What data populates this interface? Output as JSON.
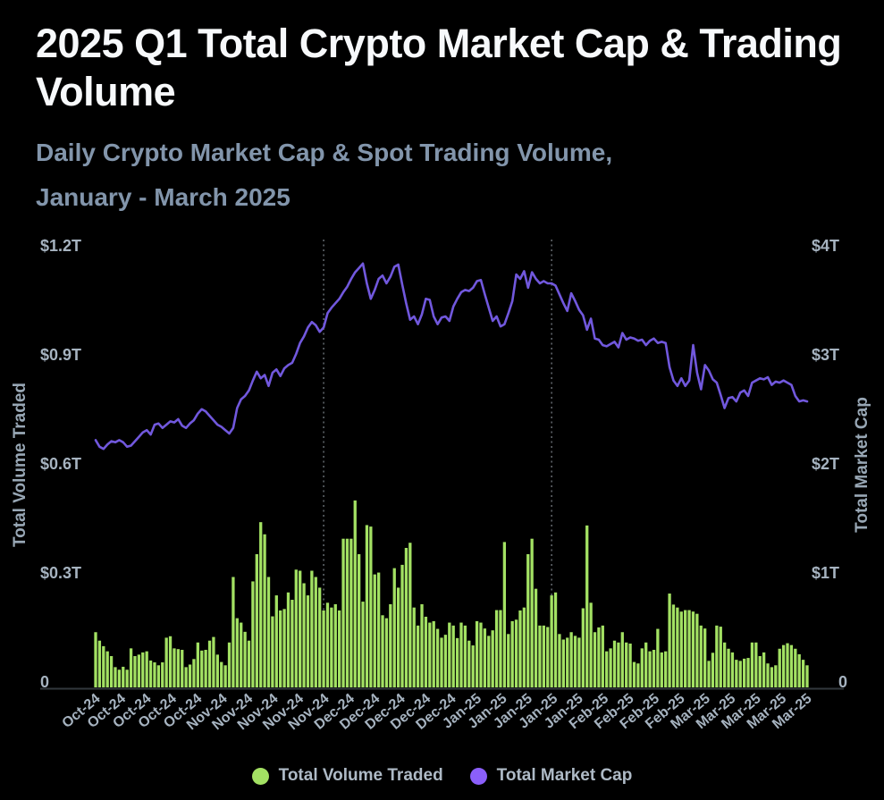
{
  "header": {
    "title": "2025 Q1 Total Crypto Market Cap & Trading Volume",
    "subtitle_line1": "Daily Crypto Market Cap & Spot Trading Volume,",
    "subtitle_line2": "January - March 2025"
  },
  "theme": {
    "background": "#000000",
    "title_color": "#f7f9fb",
    "subtitle_color": "#8295ab",
    "tick_label_color": "#a6b3c0",
    "axis_title_color": "#98a7b5",
    "legend_text_color": "#aebac6",
    "axis_line_color": "#32373d",
    "dashed_gridline_color": "#8b9299",
    "bar_color": "#a3e163",
    "line_color": "#7158dd",
    "legend_volume_dot_color": "#a3e163",
    "legend_marketcap_dot_color": "#8b5ffa"
  },
  "chart_data": {
    "type": "bar+line",
    "title": "2025 Q1 Total Crypto Market Cap & Trading Volume",
    "x": {
      "start_date": "2024-10-01",
      "end_date": "2025-03-31",
      "interval": "daily",
      "points": 182
    },
    "x_tick_labels": [
      "Oct-24",
      "Oct-24",
      "Oct-24",
      "Oct-24",
      "Oct-24",
      "Nov-24",
      "Nov-24",
      "Nov-24",
      "Nov-24",
      "Nov-24",
      "Dec-24",
      "Dec-24",
      "Dec-24",
      "Dec-24",
      "Dec-24",
      "Jan-25",
      "Jan-25",
      "Jan-25",
      "Jan-25",
      "Jan-25",
      "Feb-25",
      "Feb-25",
      "Feb-25",
      "Feb-25",
      "Mar-25",
      "Mar-25",
      "Mar-25",
      "Mar-25",
      "Mar-25"
    ],
    "left_axis": {
      "label": "Total Volume Traded",
      "ticks": [
        "0",
        "$0.3T",
        "$0.6T",
        "$0.9T",
        "$1.2T"
      ],
      "min": 0,
      "max": 1.2,
      "unit": "trillion USD"
    },
    "right_axis": {
      "label": "Total Market Cap",
      "ticks": [
        "0",
        "$1T",
        "$2T",
        "$3T",
        "$4T"
      ],
      "min": 0,
      "max": 4,
      "unit": "trillion USD"
    },
    "grid": "off",
    "annotations": {
      "dashed_vline_day_indices": [
        58,
        116
      ]
    },
    "legend_position": "bottom-center",
    "legend": [
      {
        "label": "Total Volume Traded",
        "color": "#a3e163"
      },
      {
        "label": "Total Market Cap",
        "color": "#8b5ffa"
      }
    ],
    "series": [
      {
        "name": "Total Volume Traded",
        "type": "bar",
        "axis": "left",
        "color": "#a3e163",
        "values": [
          0.15,
          0.127,
          0.112,
          0.098,
          0.085,
          0.055,
          0.048,
          0.056,
          0.048,
          0.106,
          0.085,
          0.089,
          0.095,
          0.098,
          0.073,
          0.068,
          0.06,
          0.068,
          0.135,
          0.139,
          0.106,
          0.104,
          0.102,
          0.055,
          0.062,
          0.077,
          0.122,
          0.1,
          0.102,
          0.127,
          0.137,
          0.089,
          0.069,
          0.06,
          0.122,
          0.3,
          0.188,
          0.176,
          0.151,
          0.127,
          0.288,
          0.362,
          0.449,
          0.416,
          0.3,
          0.193,
          0.25,
          0.209,
          0.213,
          0.258,
          0.238,
          0.32,
          0.317,
          0.283,
          0.25,
          0.317,
          0.3,
          0.271,
          0.209,
          0.23,
          0.217,
          0.226,
          0.209,
          0.404,
          0.404,
          0.404,
          0.508,
          0.362,
          0.233,
          0.441,
          0.437,
          0.307,
          0.312,
          0.196,
          0.188,
          0.226,
          0.324,
          0.271,
          0.333,
          0.379,
          0.393,
          0.217,
          0.168,
          0.226,
          0.192,
          0.176,
          0.18,
          0.159,
          0.135,
          0.143,
          0.176,
          0.168,
          0.134,
          0.176,
          0.168,
          0.127,
          0.114,
          0.18,
          0.176,
          0.16,
          0.14,
          0.155,
          0.21,
          0.21,
          0.395,
          0.145,
          0.18,
          0.184,
          0.209,
          0.217,
          0.362,
          0.404,
          0.268,
          0.168,
          0.168,
          0.164,
          0.25,
          0.258,
          0.145,
          0.13,
          0.135,
          0.15,
          0.14,
          0.135,
          0.215,
          0.44,
          0.23,
          0.15,
          0.163,
          0.168,
          0.098,
          0.106,
          0.127,
          0.122,
          0.15,
          0.122,
          0.119,
          0.069,
          0.065,
          0.106,
          0.122,
          0.098,
          0.102,
          0.159,
          0.095,
          0.098,
          0.255,
          0.225,
          0.217,
          0.206,
          0.21,
          0.21,
          0.206,
          0.2,
          0.168,
          0.16,
          0.072,
          0.094,
          0.168,
          0.165,
          0.122,
          0.105,
          0.095,
          0.075,
          0.072,
          0.078,
          0.08,
          0.122,
          0.122,
          0.085,
          0.095,
          0.065,
          0.055,
          0.06,
          0.105,
          0.115,
          0.12,
          0.115,
          0.105,
          0.09,
          0.075,
          0.06
        ]
      },
      {
        "name": "Total Market Cap",
        "type": "line",
        "axis": "right",
        "color": "#7158dd",
        "values": [
          2.24,
          2.18,
          2.16,
          2.2,
          2.23,
          2.22,
          2.24,
          2.22,
          2.18,
          2.19,
          2.23,
          2.27,
          2.31,
          2.33,
          2.29,
          2.38,
          2.39,
          2.35,
          2.38,
          2.41,
          2.4,
          2.43,
          2.37,
          2.35,
          2.39,
          2.42,
          2.48,
          2.52,
          2.5,
          2.46,
          2.42,
          2.38,
          2.36,
          2.33,
          2.3,
          2.35,
          2.53,
          2.61,
          2.64,
          2.69,
          2.78,
          2.86,
          2.8,
          2.83,
          2.73,
          2.85,
          2.88,
          2.82,
          2.89,
          2.92,
          2.94,
          3.02,
          3.12,
          3.18,
          3.26,
          3.31,
          3.28,
          3.22,
          3.26,
          3.39,
          3.44,
          3.48,
          3.52,
          3.58,
          3.63,
          3.7,
          3.76,
          3.8,
          3.84,
          3.66,
          3.52,
          3.6,
          3.7,
          3.73,
          3.66,
          3.72,
          3.81,
          3.83,
          3.65,
          3.48,
          3.33,
          3.36,
          3.29,
          3.38,
          3.52,
          3.51,
          3.36,
          3.29,
          3.35,
          3.36,
          3.32,
          3.45,
          3.52,
          3.58,
          3.6,
          3.59,
          3.62,
          3.68,
          3.69,
          3.56,
          3.44,
          3.32,
          3.36,
          3.27,
          3.29,
          3.39,
          3.5,
          3.74,
          3.7,
          3.77,
          3.62,
          3.76,
          3.7,
          3.66,
          3.68,
          3.66,
          3.66,
          3.64,
          3.56,
          3.48,
          3.41,
          3.57,
          3.5,
          3.42,
          3.37,
          3.24,
          3.34,
          3.16,
          3.15,
          3.1,
          3.09,
          3.11,
          3.13,
          3.08,
          3.21,
          3.15,
          3.17,
          3.16,
          3.14,
          3.15,
          3.1,
          3.14,
          3.16,
          3.12,
          3.13,
          3.12,
          2.9,
          2.78,
          2.73,
          2.8,
          2.73,
          2.78,
          3.1,
          2.85,
          2.7,
          2.92,
          2.87,
          2.79,
          2.76,
          2.65,
          2.53,
          2.62,
          2.63,
          2.59,
          2.67,
          2.69,
          2.64,
          2.76,
          2.78,
          2.8,
          2.79,
          2.81,
          2.74,
          2.77,
          2.76,
          2.78,
          2.76,
          2.74,
          2.64,
          2.59,
          2.6,
          2.59
        ]
      }
    ]
  }
}
